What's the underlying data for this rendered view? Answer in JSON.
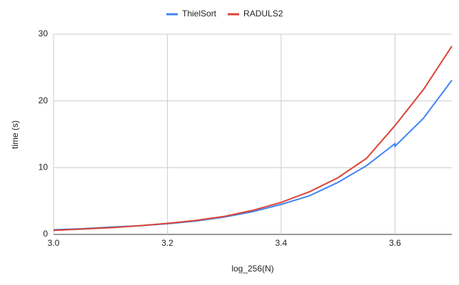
{
  "chart_data": {
    "type": "line",
    "x_label": "log_256(N)",
    "y_label": "time (s)",
    "x": [
      3.0,
      3.05,
      3.1,
      3.15,
      3.2,
      3.25,
      3.3,
      3.35,
      3.4,
      3.45,
      3.5,
      3.55,
      3.6,
      3.6,
      3.65,
      3.7
    ],
    "series": [
      {
        "name": "ThielSort",
        "color": "#4285f4",
        "values": [
          0.7,
          0.85,
          1.1,
          1.3,
          1.6,
          2.0,
          2.6,
          3.4,
          4.5,
          5.8,
          7.8,
          10.3,
          13.6,
          13.2,
          17.4,
          23.1
        ]
      },
      {
        "name": "RADULS2",
        "color": "#db4437",
        "values": [
          0.6,
          0.8,
          1.0,
          1.3,
          1.65,
          2.1,
          2.7,
          3.6,
          4.8,
          6.4,
          8.5,
          11.4,
          16.3,
          16.3,
          21.7,
          28.2
        ]
      }
    ],
    "xlim": [
      3.0,
      3.7
    ],
    "xticks": [
      {
        "value": 3.0,
        "label": "3.0"
      },
      {
        "value": 3.2,
        "label": "3.2"
      },
      {
        "value": 3.4,
        "label": "3.4"
      },
      {
        "value": 3.6,
        "label": "3.6"
      }
    ],
    "ylim": [
      0,
      30
    ],
    "yticks": [
      0,
      10,
      20,
      30
    ],
    "grid": true,
    "legend": "top"
  }
}
